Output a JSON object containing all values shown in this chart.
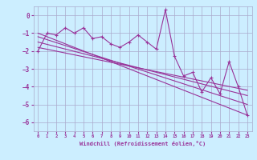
{
  "title": "",
  "xlabel": "Windchill (Refroidissement éolien,°C)",
  "ylabel": "",
  "bg_color": "#cceeff",
  "grid_color": "#aaaacc",
  "line_color": "#993399",
  "x_data": [
    0,
    1,
    2,
    3,
    4,
    5,
    6,
    7,
    8,
    9,
    10,
    11,
    12,
    13,
    14,
    15,
    16,
    17,
    18,
    19,
    20,
    21,
    22,
    23
  ],
  "y_scatter": [
    -2.0,
    -1.0,
    -1.1,
    -0.7,
    -1.0,
    -0.7,
    -1.3,
    -1.2,
    -1.6,
    -1.8,
    -1.5,
    -1.1,
    -1.5,
    -1.9,
    0.3,
    -2.3,
    -3.4,
    -3.2,
    -4.3,
    -3.5,
    -4.4,
    -2.6,
    -4.0,
    -5.6
  ],
  "ylim": [
    -6.5,
    0.5
  ],
  "xlim": [
    -0.5,
    23.5
  ],
  "yticks": [
    0,
    -1,
    -2,
    -3,
    -4,
    -5,
    -6
  ],
  "xticks": [
    0,
    1,
    2,
    3,
    4,
    5,
    6,
    7,
    8,
    9,
    10,
    11,
    12,
    13,
    14,
    15,
    16,
    17,
    18,
    19,
    20,
    21,
    22,
    23
  ],
  "trend_lines": [
    {
      "x0": 0,
      "y0": -1.0,
      "x1": 23,
      "y1": -5.6
    },
    {
      "x0": 0,
      "y0": -1.2,
      "x1": 23,
      "y1": -5.0
    },
    {
      "x0": 0,
      "y0": -1.5,
      "x1": 23,
      "y1": -4.5
    },
    {
      "x0": 0,
      "y0": -1.8,
      "x1": 23,
      "y1": -4.2
    }
  ]
}
